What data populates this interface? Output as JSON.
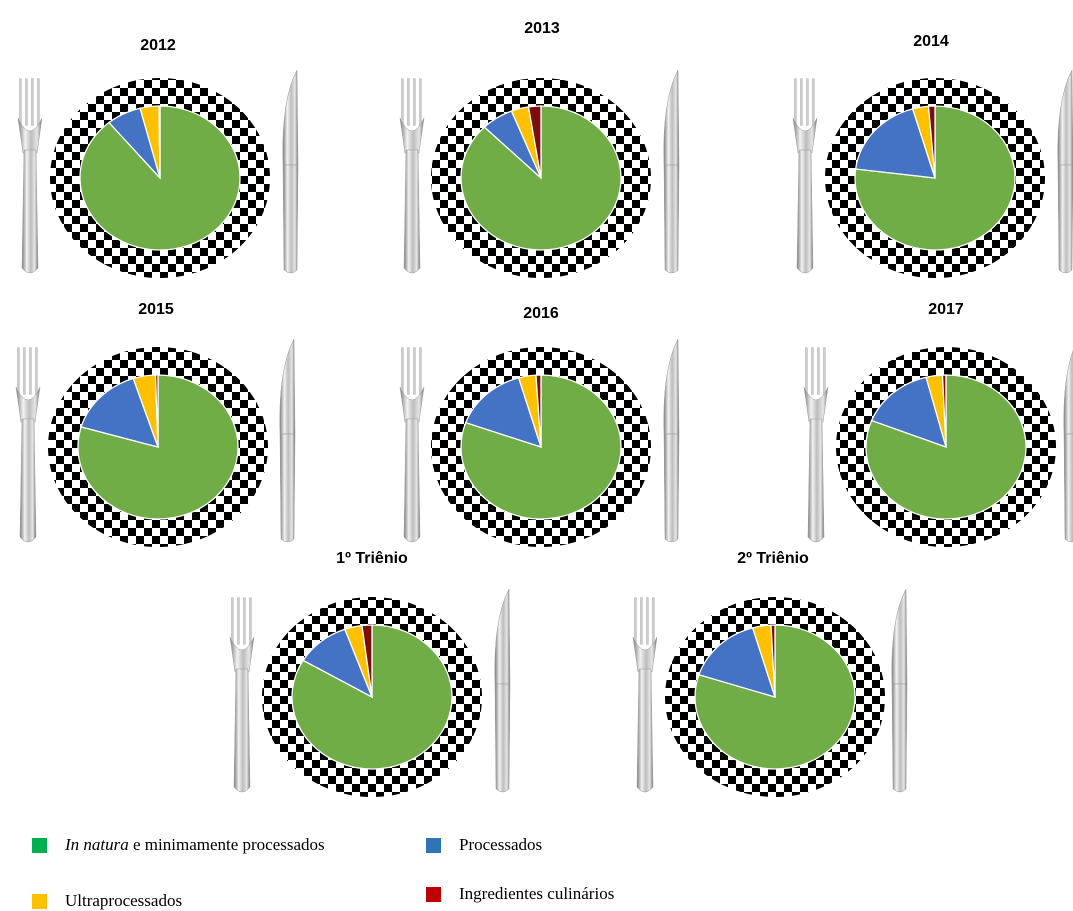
{
  "colors": {
    "in_natura": "#70AD47",
    "processados": "#4472C4",
    "ultraprocessados": "#FFC000",
    "ingredientes": "#7B0F0F",
    "checker_dark": "#000000",
    "checker_light": "#ffffff",
    "silver_light": "#eeeeee",
    "silver_dark": "#8a8a8a"
  },
  "chart_data": [
    {
      "type": "pie",
      "title": "2012",
      "categories": [
        "In natura e minimamente processados",
        "Processados",
        "Ultraprocessados",
        "Ingredientes culinários"
      ],
      "values": [
        89.0,
        7.0,
        3.8,
        0.2
      ]
    },
    {
      "type": "pie",
      "title": "2013",
      "categories": [
        "In natura e minimamente processados",
        "Processados",
        "Ultraprocessados",
        "Ingredientes culinários"
      ],
      "values": [
        87.5,
        6.5,
        3.5,
        2.5
      ]
    },
    {
      "type": "pie",
      "title": "2014",
      "categories": [
        "In natura e minimamente processados",
        "Processados",
        "Ultraprocessados",
        "Ingredientes culinários"
      ],
      "values": [
        77.0,
        18.5,
        3.2,
        1.3
      ]
    },
    {
      "type": "pie",
      "title": "2015",
      "categories": [
        "In natura e minimamente processados",
        "Processados",
        "Ultraprocessados",
        "Ingredientes culinários"
      ],
      "values": [
        79.5,
        15.5,
        4.5,
        0.5
      ]
    },
    {
      "type": "pie",
      "title": "2016",
      "categories": [
        "In natura e minimamente processados",
        "Processados",
        "Ultraprocessados",
        "Ingredientes culinários"
      ],
      "values": [
        80.5,
        15.0,
        3.5,
        1.0
      ]
    },
    {
      "type": "pie",
      "title": "2017",
      "categories": [
        "In natura e minimamente processados",
        "Processados",
        "Ultraprocessados",
        "Ingredientes culinários"
      ],
      "values": [
        81.0,
        15.0,
        3.3,
        0.7
      ]
    },
    {
      "type": "pie",
      "title": "1º Triênio",
      "categories": [
        "In natura e minimamente processados",
        "Processados",
        "Ultraprocessados",
        "Ingredientes culinários"
      ],
      "values": [
        83.5,
        11.0,
        3.5,
        2.0
      ]
    },
    {
      "type": "pie",
      "title": "2º Triênio",
      "categories": [
        "In natura e minimamente processados",
        "Processados",
        "Ultraprocessados",
        "Ingredientes culinários"
      ],
      "values": [
        80.0,
        15.5,
        3.7,
        0.8
      ]
    }
  ],
  "legend": {
    "in_natura_italic": "In natura",
    "in_natura_rest": " e minimamente processados",
    "processados": "Processados",
    "ultraprocessados": "Ultraprocessados",
    "ingredientes": "Ingredientes culinários"
  }
}
